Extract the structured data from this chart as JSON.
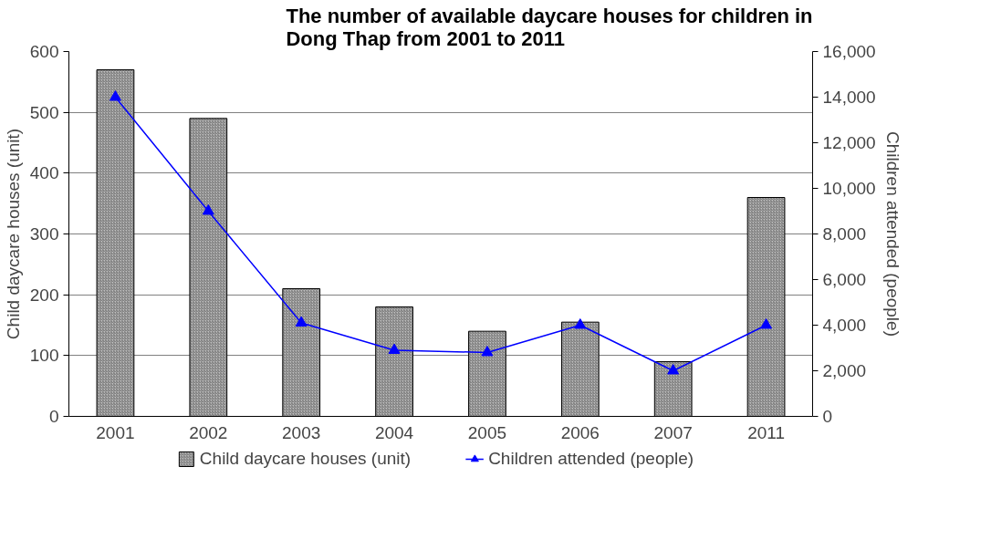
{
  "chart_data": {
    "type": "bar",
    "title": "The number of available daycare houses for children in Dong Thap from 2001 to 2011",
    "categories": [
      "2001",
      "2002",
      "2003",
      "2004",
      "2005",
      "2006",
      "2007",
      "2011"
    ],
    "series": [
      {
        "name": "Child daycare houses (unit)",
        "color": "#c0c0c0",
        "values": [
          570,
          490,
          210,
          180,
          140,
          155,
          90,
          360
        ]
      },
      {
        "name": "Children attended (people)",
        "type": "line",
        "axis": "y2",
        "color": "#0000ff",
        "marker": "triangle",
        "values": [
          14000,
          9000,
          4100,
          2900,
          2800,
          4000,
          2000,
          4000
        ]
      }
    ],
    "ylabel": "Child daycare houses (unit)",
    "y2label": "Children attended (people)",
    "ylim": [
      0,
      600
    ],
    "yticks": [
      0,
      100,
      200,
      300,
      400,
      500,
      600
    ],
    "y2lim": [
      0,
      16000
    ],
    "y2ticks": [
      0,
      {
        "value": 2000,
        "label": "2,000"
      },
      {
        "value": 4000,
        "label": "4,000"
      },
      {
        "value": 6000,
        "label": "6,000"
      },
      {
        "value": 8000,
        "label": "8,000"
      },
      {
        "value": 10000,
        "label": "10,000"
      },
      {
        "value": 12000,
        "label": "12,000"
      },
      {
        "value": 14000,
        "label": "14,000"
      },
      {
        "value": 16000,
        "label": "16,000"
      }
    ],
    "grid": "y",
    "legend": "bottom"
  }
}
